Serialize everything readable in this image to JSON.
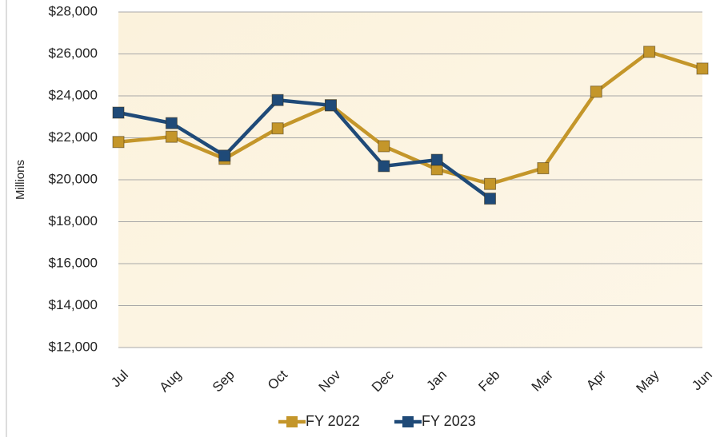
{
  "chart_data": {
    "type": "line",
    "y_label": "Millions",
    "categories": [
      "Jul",
      "Aug",
      "Sep",
      "Oct",
      "Nov",
      "Dec",
      "Jan",
      "Feb",
      "Mar",
      "Apr",
      "May",
      "Jun"
    ],
    "series": [
      {
        "name": "FY 2022",
        "color": "#c4962a",
        "values": [
          21800,
          22050,
          21000,
          22450,
          23550,
          21600,
          20500,
          19800,
          20550,
          24200,
          26100,
          25300
        ]
      },
      {
        "name": "FY 2023",
        "color": "#1f4a78",
        "values": [
          23200,
          22700,
          21150,
          23800,
          23550,
          20650,
          20950,
          19100,
          null,
          null,
          null,
          null
        ]
      }
    ],
    "ylim": [
      12000,
      28000
    ],
    "yticks": [
      {
        "value": 12000,
        "label": "$12,000"
      },
      {
        "value": 14000,
        "label": "$14,000"
      },
      {
        "value": 16000,
        "label": "$16,000"
      },
      {
        "value": 18000,
        "label": "$18,000"
      },
      {
        "value": 20000,
        "label": "$20,000"
      },
      {
        "value": 22000,
        "label": "$22,000"
      },
      {
        "value": 24000,
        "label": "$24,000"
      },
      {
        "value": 26000,
        "label": "$26,000"
      },
      {
        "value": 28000,
        "label": "$28,000"
      }
    ],
    "grid": true,
    "legend": "bottom"
  }
}
